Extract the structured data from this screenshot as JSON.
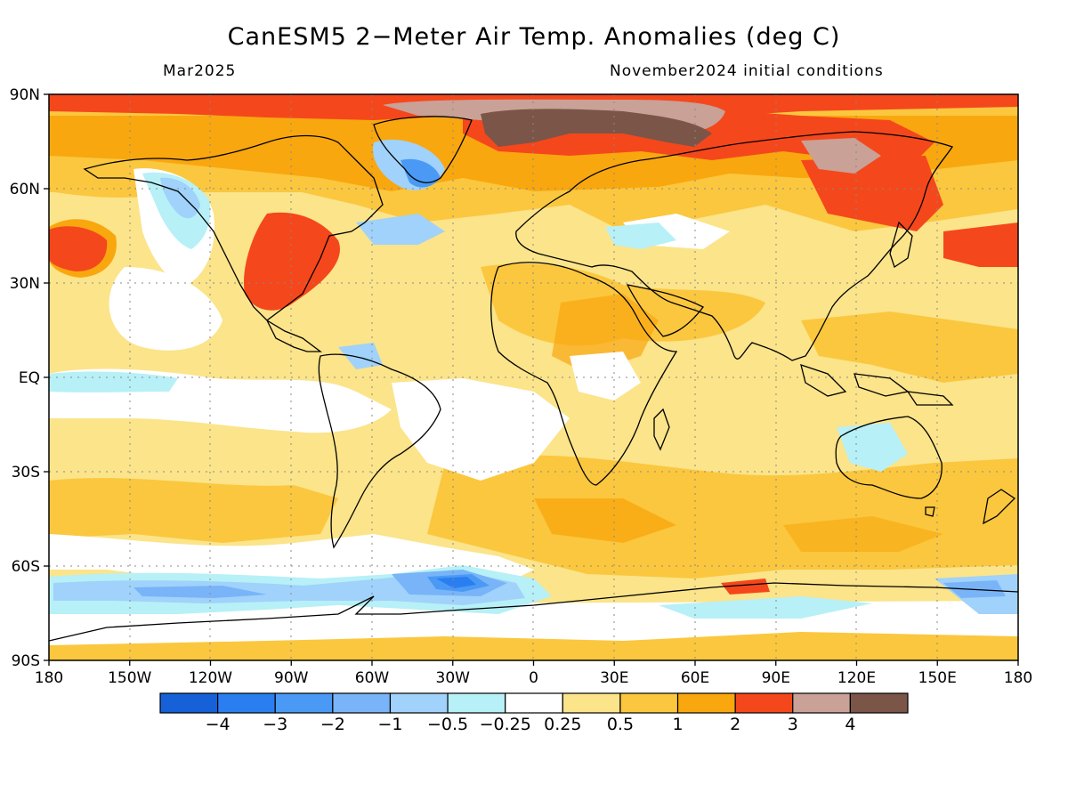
{
  "title": "CanESM5 2−Meter Air Temp. Anomalies (deg C)",
  "valid_month": "Mar2025",
  "init_conditions": "November2024 initial conditions",
  "lat_labels": [
    "90N",
    "60N",
    "30N",
    "EQ",
    "30S",
    "60S",
    "90S"
  ],
  "lon_labels": [
    "180",
    "150W",
    "120W",
    "90W",
    "60W",
    "30W",
    "0",
    "30E",
    "60E",
    "90E",
    "120E",
    "150E",
    "180"
  ],
  "colorbar": {
    "colors": [
      "#1660d8",
      "#2a7ef0",
      "#4a9af5",
      "#78b4f7",
      "#a0d2fb",
      "#b7f0f7",
      "#ffffff",
      "#fbe48a",
      "#fbc73e",
      "#f9a70f",
      "#f5471c",
      "#c9a196",
      "#7b5548"
    ],
    "labels": [
      "−4",
      "−3",
      "−2",
      "−1",
      "−0.5",
      "−0.25",
      "0.25",
      "0.5",
      "1",
      "2",
      "3",
      "4"
    ]
  },
  "map_data": {
    "description_regions": [
      {
        "name": "arctic",
        "level": "3"
      },
      {
        "name": "siberia-high",
        "level": ">4"
      },
      {
        "name": "southern-ocean",
        "level": "-2"
      }
    ]
  }
}
